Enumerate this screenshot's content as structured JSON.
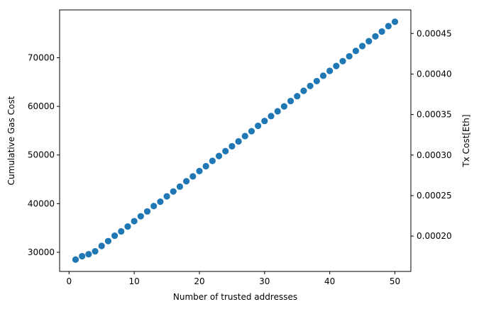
{
  "chart_data": {
    "type": "scatter",
    "xlabel": "Number of trusted addresses",
    "ylabel": "Cumulative Gas Cost",
    "y2label": "Tx Cost[Eth]",
    "xlim": [
      -1.45,
      52.45
    ],
    "ylim": [
      26058,
      79836
    ],
    "y2lim": [
      0.0001564,
      0.0004791
    ],
    "xticks": [
      0,
      10,
      20,
      30,
      40,
      50
    ],
    "xtick_labels": [
      "0",
      "10",
      "20",
      "30",
      "40",
      "50"
    ],
    "yticks": [
      30000,
      40000,
      50000,
      60000,
      70000
    ],
    "ytick_labels": [
      "30000",
      "40000",
      "50000",
      "60000",
      "70000"
    ],
    "y2ticks": [
      0.0002,
      0.00025,
      0.0003,
      0.00035,
      0.0004,
      0.00045
    ],
    "y2tick_labels": [
      "0.00020",
      "0.00025",
      "0.00030",
      "0.00035",
      "0.00040",
      "0.00045"
    ],
    "grid": false,
    "marker_color": "#1f77b4",
    "x": [
      1,
      2,
      3,
      4,
      5,
      6,
      7,
      8,
      9,
      10,
      11,
      12,
      13,
      14,
      15,
      16,
      17,
      18,
      19,
      20,
      21,
      22,
      23,
      24,
      25,
      26,
      27,
      28,
      29,
      30,
      31,
      32,
      33,
      34,
      35,
      36,
      37,
      38,
      39,
      40,
      41,
      42,
      43,
      44,
      45,
      46,
      47,
      48,
      49,
      50
    ],
    "y": [
      28500,
      29200,
      29600,
      30200,
      31300,
      32300,
      33400,
      34300,
      35300,
      36400,
      37400,
      38400,
      39500,
      40400,
      41500,
      42500,
      43500,
      44600,
      45600,
      46700,
      47700,
      48800,
      49800,
      50800,
      51800,
      52800,
      53900,
      54900,
      56000,
      57000,
      58000,
      59000,
      60000,
      61100,
      62100,
      63200,
      64200,
      65200,
      66300,
      67300,
      68300,
      69300,
      70300,
      71400,
      72400,
      73400,
      74400,
      75400,
      76500,
      77400
    ]
  }
}
